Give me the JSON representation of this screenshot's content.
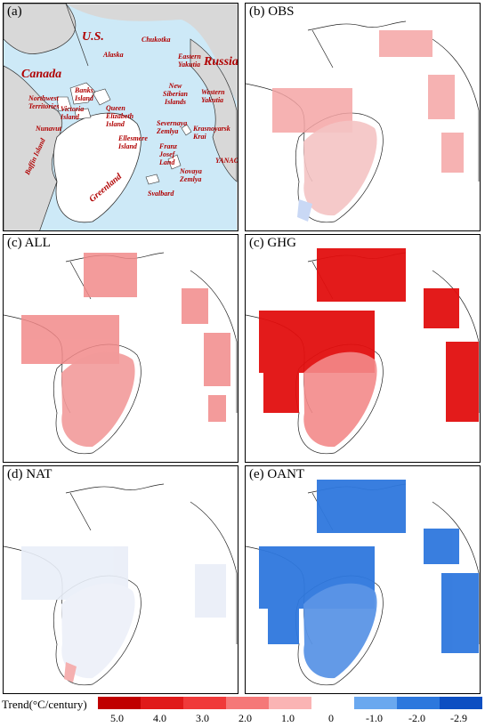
{
  "panels": {
    "a": {
      "label": "(a)"
    },
    "b": {
      "label": "(b) OBS"
    },
    "c1": {
      "label": "(c) ALL"
    },
    "c2": {
      "label": "(c) GHG"
    },
    "d": {
      "label": "(d) NAT"
    },
    "e": {
      "label": "(e) OANT"
    }
  },
  "places": {
    "us": "U.S.",
    "canada": "Canada",
    "russia": "Russia",
    "alaska": "Alaska",
    "chukotka": "Chukotka",
    "eastern_yakutia": "Eastern\nYakutia",
    "new_siberian": "New\nSiberian\nIslands",
    "western_yakutia": "Western\nYakutia",
    "banks": "Banks\nIsland",
    "northwest": "Northwest\nTerritories",
    "victoria": "Victoria\nIsland",
    "nunavut": "Nunavut",
    "queen_elizabeth": "Queen\nElizabeth\nIsland",
    "baffin": "Baffin Island",
    "ellesmere": "Ellesmere\nIsland",
    "severnaya": "Severnaya\nZemlya",
    "krasnoyarsk": "Krasnoyarsk\nKrai",
    "franz_josef": "Franz\nJosef\nLand",
    "novaya": "Novaya\nZemlya",
    "yamal": "YANAO",
    "greenland": "Greenland",
    "svalbard": "Svalbard"
  },
  "legend": {
    "title": "Trend(°C/century)",
    "ticks": [
      "5.0",
      "4.0",
      "3.0",
      "2.0",
      "1.0",
      "0",
      "-1.0",
      "-2.0",
      "-2.9"
    ],
    "colors": {
      "c5": "#c00000",
      "c4": "#e01a1a",
      "c3": "#f03a3a",
      "c2": "#f57878",
      "c1": "#fab4b4",
      "z": "#ffffff",
      "n1": "#6aa8ef",
      "n2": "#2d78dd",
      "n3": "#0d4fc2"
    }
  },
  "colors": {
    "ocean": "#cde9f7",
    "land": "#ffffff",
    "outerland": "#d8d8d8",
    "label": "#b00000"
  }
}
